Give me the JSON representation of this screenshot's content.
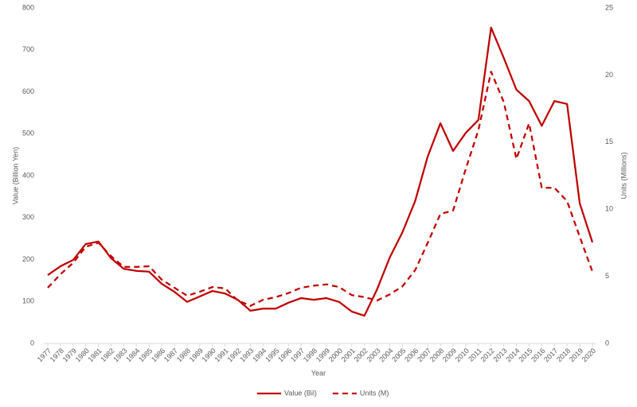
{
  "chart_data": {
    "type": "line",
    "x_label": "Year",
    "y_label": "Value (Billion Yen)",
    "y2_label": "Units (Millions)",
    "categories": [
      "1977",
      "1978",
      "1979",
      "1980",
      "1981",
      "1982",
      "1983",
      "1984",
      "1985",
      "1986",
      "1987",
      "1988",
      "1989",
      "1990",
      "1991",
      "1992",
      "1993",
      "1994",
      "1995",
      "1996",
      "1997",
      "1998",
      "1999",
      "2000",
      "2001",
      "2002",
      "2003",
      "2004",
      "2005",
      "2006",
      "2007",
      "2008",
      "2009",
      "2010",
      "2011",
      "2012",
      "2013",
      "2014",
      "2015",
      "2016",
      "2017",
      "2018",
      "2019",
      "2020"
    ],
    "series": [
      {
        "name": "Value (Bil)",
        "color": "#c00000",
        "line_style": "solid",
        "axis": "y",
        "values": [
          163,
          184,
          199,
          237,
          243,
          203,
          178,
          173,
          171,
          142,
          123,
          99,
          112,
          125,
          119,
          104,
          78,
          83,
          83,
          97,
          108,
          104,
          108,
          99,
          76,
          66,
          129,
          205,
          265,
          339,
          446,
          525,
          459,
          502,
          533,
          753,
          681,
          605,
          578,
          519,
          578,
          571,
          334,
          241
        ]
      },
      {
        "name": "Units (M)",
        "color": "#c00000",
        "line_style": "dashed",
        "axis": "y2",
        "values": [
          4.15,
          5.15,
          6.0,
          7.2,
          7.5,
          6.5,
          5.7,
          5.7,
          5.75,
          4.75,
          4.15,
          3.55,
          3.85,
          4.2,
          4.1,
          3.2,
          2.8,
          3.25,
          3.45,
          3.75,
          4.15,
          4.3,
          4.4,
          4.2,
          3.6,
          3.45,
          3.2,
          3.65,
          4.25,
          5.45,
          7.5,
          9.65,
          9.9,
          13.0,
          15.9,
          20.25,
          18.0,
          13.75,
          16.4,
          11.6,
          11.6,
          10.6,
          7.95,
          5.35
        ]
      }
    ],
    "ylim": [
      0,
      800
    ],
    "yticks": [
      0,
      100,
      200,
      300,
      400,
      500,
      600,
      700,
      800
    ],
    "y2lim": [
      0,
      25
    ],
    "y2ticks": [
      0,
      5,
      10,
      15,
      20,
      25
    ],
    "grid": false,
    "legend": "bottom"
  }
}
